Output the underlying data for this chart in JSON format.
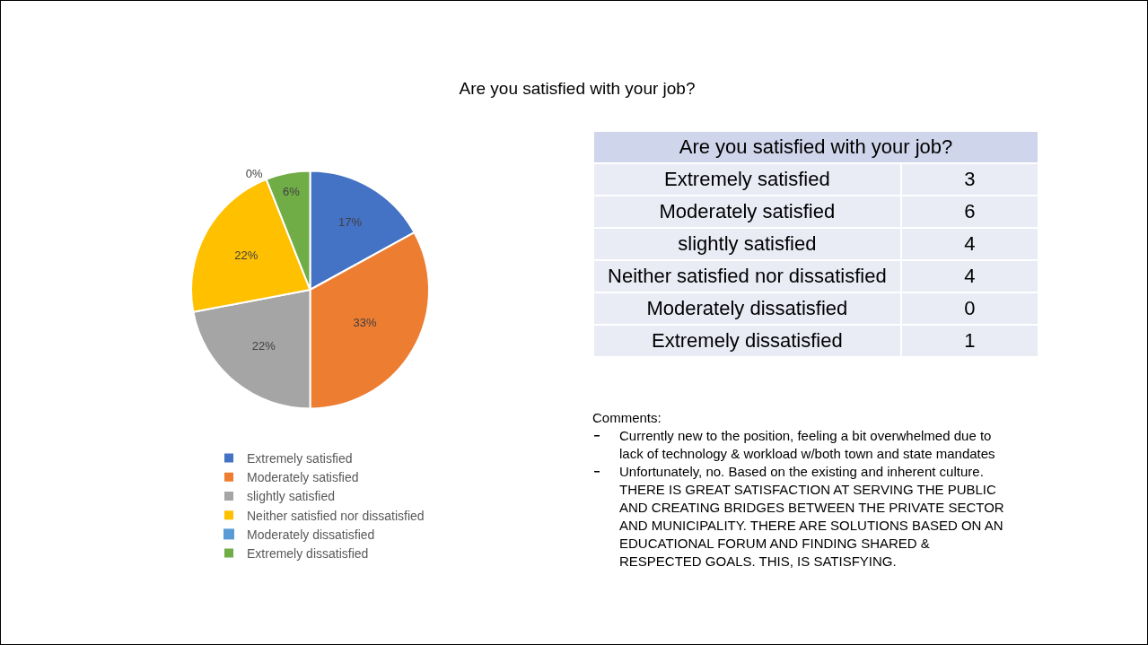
{
  "chart_data": [
    {
      "type": "pie",
      "title": "Are you satisfied with your job?",
      "categories": [
        "Extremely satisfied",
        "Moderately satisfied",
        "slightly satisfied",
        "Neither satisfied nor dissatisfied",
        "Moderately dissatisfied",
        "Extremely dissatisfied"
      ],
      "values": [
        17,
        33,
        22,
        22,
        0,
        6
      ],
      "value_labels": [
        "17%",
        "33%",
        "22%",
        "22%",
        "0%",
        "6%"
      ],
      "colors": [
        "#4472c4",
        "#ed7d31",
        "#a5a5a5",
        "#ffc000",
        "#5b9bd5",
        "#70ad47"
      ],
      "legend": "bottom",
      "annotations": [
        "Comments:",
        "Currently new to the position, feeling a bit overwhelmed due to lack of technology & workload w/both town and state mandates",
        "Unfortunately, no.  Based on the existing and inherent culture.  THERE IS GREAT SATISFACTION AT SERVING THE PUBLIC AND CREATING BRIDGES BETWEEN THE PRIVATE SECTOR AND MUNICIPALITY.    THERE ARE SOLUTIONS BASED ON AN EDUCATIONAL FORUM AND FINDING SHARED & RESPECTED GOALS.  THIS, IS SATISFYING."
      ]
    },
    {
      "type": "other",
      "title": "Are you satisfied with your job?",
      "categories": [
        "Extremely satisfied",
        "Moderately satisfied",
        "slightly satisfied",
        "Neither satisfied nor dissatisfied",
        "Moderately dissatisfied",
        "Extremely dissatisfied"
      ],
      "values": [
        3,
        6,
        4,
        4,
        0,
        1
      ],
      "data_labels": true
    }
  ]
}
